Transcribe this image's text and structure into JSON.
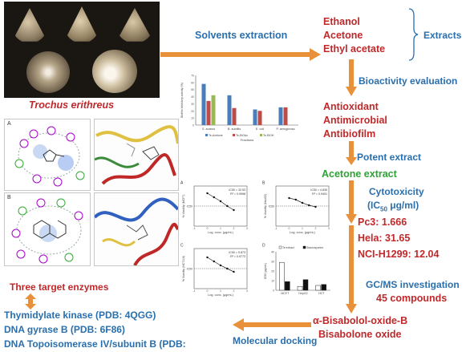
{
  "species": "Trochus erithreus",
  "steps": {
    "solvents_extraction": "Solvents extraction",
    "bioactivity_evaluation": "Bioactivity evaluation",
    "potent_extract": "Potent extract",
    "acetone_extract": "Acetone extract",
    "cytotoxicity": "Cytotoxicity",
    "ic50_unit": "(IC",
    "ic50_sub": "50",
    "ic50_tail": " μg/ml)",
    "gcms": "GC/MS investigation",
    "compounds": "45 compounds",
    "molecular_docking": "Molecular docking",
    "three_targets": "Three target enzymes",
    "extracts": "Extracts"
  },
  "solvents": [
    "Ethanol",
    "Acetone",
    "Ethyl acetate"
  ],
  "activities": [
    "Antioxidant",
    "Antimicrobial",
    "Antibiofilm"
  ],
  "ic50_values": [
    "Pc3: 1.666",
    "Hela:  31.65",
    "NCI-H1299: 12.04"
  ],
  "gcms_compounds": [
    "α-Bisabolol-oxide-B",
    "Bisabolone oxide"
  ],
  "targets": [
    "Thymidylate kinase (PDB: 4QGG)",
    "DNA gyrase B (PDB: 6F86)",
    "DNA Topoisomerase IV/subunit B (PDB:"
  ],
  "panel_labels": {
    "a": "A",
    "b": "B",
    "c": "C",
    "d": "D"
  },
  "colors": {
    "red": "#c0282a",
    "blue": "#2a6fad",
    "green": "#2ea236",
    "arrow": "#e8913a"
  },
  "chart_data": [
    {
      "type": "bar",
      "categories": [
        "S. aureus",
        "B. subtilis",
        "E. coli",
        "P. aeruginosa"
      ],
      "series": [
        {
          "name": "Te-Acetone",
          "values": [
            58,
            42,
            22,
            25
          ]
        },
        {
          "name": "Te-EtOAc",
          "values": [
            34,
            24,
            20,
            25
          ]
        },
        {
          "name": "Te-EtOH",
          "values": [
            42,
            0,
            0,
            0
          ]
        }
      ],
      "xlabel": "Fractions",
      "ylabel": "Biofilm inhibitory activity (%)",
      "ylim": [
        0,
        70
      ],
      "series_colors": [
        "#4a7ebb",
        "#be4b48",
        "#98b954"
      ]
    },
    {
      "type": "line",
      "label": "A",
      "x": [
        0,
        0.5,
        1,
        1.5,
        2
      ],
      "y": [
        82,
        72,
        62,
        50,
        40
      ],
      "xlabel": "Log. conc. (μg/mL)",
      "ylabel": "% Viability (MCF7)",
      "annotation": [
        "IC50 = 32.53",
        "R² = 0.9998"
      ]
    },
    {
      "type": "line",
      "label": "B",
      "x": [
        0,
        0.5,
        1,
        1.5,
        2
      ],
      "y": [
        70,
        66,
        58,
        52,
        48
      ],
      "xlabel": "Log. conc. (μg/mL)",
      "ylabel": "% Viability (HepG2)",
      "annotation": [
        "IC50 = 4.835",
        "R² = 0.9401"
      ]
    },
    {
      "type": "line",
      "label": "C",
      "x": [
        0,
        0.5,
        1,
        1.5,
        2
      ],
      "y": [
        78,
        68,
        58,
        50,
        42
      ],
      "xlabel": "Log. conc. (μg/mL)",
      "ylabel": "% Viability (HCT116)",
      "annotation": [
        "IC50 = 5.873",
        "R² = 0.9773"
      ]
    },
    {
      "type": "bar",
      "label": "D",
      "categories": [
        "MCF7",
        "HepG2",
        "HCT"
      ],
      "series": [
        {
          "name": "Te extract",
          "values": [
            29,
            4,
            5
          ]
        },
        {
          "name": "Staurosporine",
          "values": [
            9,
            11,
            6
          ]
        }
      ],
      "ylabel": "IC50 (μg/mL)",
      "ylim": [
        0,
        40
      ]
    }
  ]
}
